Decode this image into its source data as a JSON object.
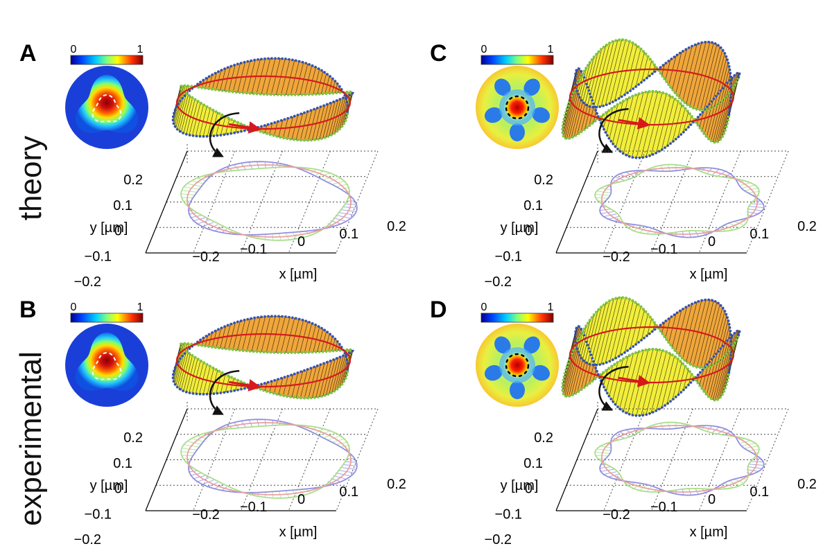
{
  "figure": {
    "row_labels": [
      "theory",
      "experimental"
    ],
    "panels": [
      {
        "letter": "A",
        "row": "theory",
        "lobes": 3
      },
      {
        "letter": "B",
        "row": "experimental",
        "lobes": 3
      },
      {
        "letter": "C",
        "row": "theory",
        "lobes": 5
      },
      {
        "letter": "D",
        "row": "experimental",
        "lobes": 5
      }
    ],
    "colorbar": {
      "min_label": "0",
      "max_label": "1"
    },
    "axes": {
      "xlabel": "x [µm]",
      "ylabel": "y [µm]",
      "x_ticks": [
        "−0.2",
        "−0.1",
        "0",
        "0.1",
        "0.2"
      ],
      "y_ticks": [
        "0.2",
        "0.1",
        "0",
        "−0.1",
        "−0.2"
      ]
    },
    "colors": {
      "ribbon_yellow": "#f2ee3a",
      "ribbon_orange": "#f0a63a",
      "edge_blue": "#2d4fb8",
      "edge_green": "#7dc63f",
      "center_red": "#d7191c",
      "arrow_black": "#111111",
      "projection_blue": "#8f8fe0",
      "projection_green": "#a8de8a",
      "projection_red": "#e8a0a0"
    }
  }
}
